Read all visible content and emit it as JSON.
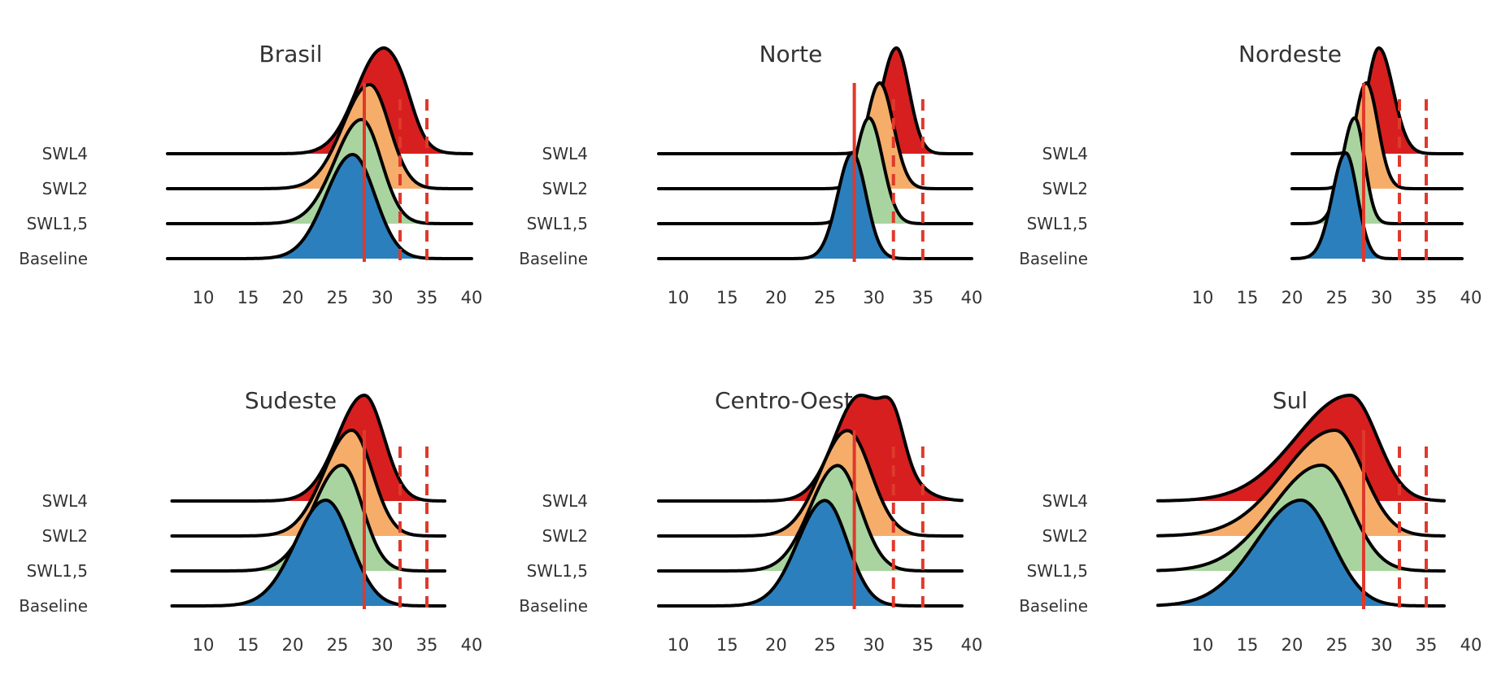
{
  "chart_data": [
    {
      "type": "ridgeline",
      "title": "Brasil",
      "series_labels": [
        "SWL4",
        "SWL2",
        "SWL1,5",
        "Baseline"
      ],
      "x_ticks": [
        10,
        15,
        20,
        25,
        30,
        35,
        40
      ],
      "xlim": [
        5,
        40
      ],
      "density_range": [
        6,
        40
      ],
      "reference_lines": {
        "solid": 28,
        "dashed": [
          32,
          35
        ]
      },
      "series": [
        {
          "name": "Baseline",
          "peaks": [
            {
              "mu": 26.7,
              "sl": 3.0,
              "sr": 2.5,
              "w": 1.0
            }
          ]
        },
        {
          "name": "SWL1,5",
          "peaks": [
            {
              "mu": 27.7,
              "sl": 3.0,
              "sr": 2.2,
              "w": 1.0
            }
          ]
        },
        {
          "name": "SWL2",
          "peaks": [
            {
              "mu": 28.6,
              "sl": 3.0,
              "sr": 2.2,
              "w": 1.0
            }
          ]
        },
        {
          "name": "SWL4",
          "peaks": [
            {
              "mu": 30.0,
              "sl": 2.9,
              "sr": 2.4,
              "w": 1.0
            },
            {
              "mu": 32.5,
              "sl": 1.2,
              "sr": 1.2,
              "w": 0.12
            }
          ]
        }
      ]
    },
    {
      "type": "ridgeline",
      "title": "Norte",
      "series_labels": [
        "SWL4",
        "SWL2",
        "SWL1,5",
        "Baseline"
      ],
      "x_ticks": [
        10,
        15,
        20,
        25,
        30,
        35,
        40
      ],
      "xlim": [
        8,
        40
      ],
      "density_range": [
        8,
        40
      ],
      "reference_lines": {
        "solid": 28,
        "dashed": [
          32,
          35
        ]
      },
      "series": [
        {
          "name": "Baseline",
          "peaks": [
            {
              "mu": 27.8,
              "sl": 1.5,
              "sr": 1.4,
              "w": 1.0
            }
          ]
        },
        {
          "name": "SWL1,5",
          "peaks": [
            {
              "mu": 29.5,
              "sl": 1.4,
              "sr": 1.4,
              "w": 1.0
            }
          ]
        },
        {
          "name": "SWL2",
          "peaks": [
            {
              "mu": 30.6,
              "sl": 1.4,
              "sr": 1.4,
              "w": 1.0
            }
          ]
        },
        {
          "name": "SWL4",
          "peaks": [
            {
              "mu": 32.3,
              "sl": 1.5,
              "sr": 1.3,
              "w": 1.0
            }
          ]
        }
      ]
    },
    {
      "type": "ridgeline",
      "title": "Nordeste",
      "series_labels": [
        "SWL4",
        "SWL2",
        "SWL1,5",
        "Baseline"
      ],
      "x_ticks": [
        10,
        15,
        20,
        25,
        30,
        35,
        40
      ],
      "xlim": [
        5,
        40
      ],
      "density_range": [
        20,
        39
      ],
      "reference_lines": {
        "solid": 28,
        "dashed": [
          32,
          35
        ]
      },
      "series": [
        {
          "name": "Baseline",
          "peaks": [
            {
              "mu": 26.0,
              "sl": 1.5,
              "sr": 1.3,
              "w": 1.0
            }
          ]
        },
        {
          "name": "SWL1,5",
          "peaks": [
            {
              "mu": 27.0,
              "sl": 1.4,
              "sr": 1.1,
              "w": 1.0
            }
          ]
        },
        {
          "name": "SWL2",
          "peaks": [
            {
              "mu": 28.3,
              "sl": 1.3,
              "sr": 1.3,
              "w": 1.0
            }
          ]
        },
        {
          "name": "SWL4",
          "peaks": [
            {
              "mu": 29.7,
              "sl": 1.3,
              "sr": 1.6,
              "w": 1.0
            }
          ]
        }
      ]
    },
    {
      "type": "ridgeline",
      "title": "Sudeste",
      "series_labels": [
        "SWL4",
        "SWL2",
        "SWL1,5",
        "Baseline"
      ],
      "x_ticks": [
        10,
        15,
        20,
        25,
        30,
        35,
        40
      ],
      "xlim": [
        5,
        40
      ],
      "density_range": [
        6.5,
        37
      ],
      "reference_lines": {
        "solid": 28,
        "dashed": [
          32,
          35
        ]
      },
      "series": [
        {
          "name": "Baseline",
          "peaks": [
            {
              "mu": 23.7,
              "sl": 3.4,
              "sr": 2.8,
              "w": 1.0
            }
          ]
        },
        {
          "name": "SWL1,5",
          "peaks": [
            {
              "mu": 25.5,
              "sl": 3.2,
              "sr": 2.3,
              "w": 1.0
            }
          ]
        },
        {
          "name": "SWL2",
          "peaks": [
            {
              "mu": 26.6,
              "sl": 3.1,
              "sr": 2.3,
              "w": 1.0
            }
          ]
        },
        {
          "name": "SWL4",
          "peaks": [
            {
              "mu": 28.0,
              "sl": 3.0,
              "sr": 2.2,
              "w": 1.0
            }
          ]
        }
      ]
    },
    {
      "type": "ridgeline",
      "title": "Centro-Oeste",
      "series_labels": [
        "SWL4",
        "SWL2",
        "SWL1,5",
        "Baseline"
      ],
      "x_ticks": [
        10,
        15,
        20,
        25,
        30,
        35,
        40
      ],
      "xlim": [
        8,
        40
      ],
      "density_range": [
        8,
        39
      ],
      "reference_lines": {
        "solid": 28,
        "dashed": [
          32,
          35
        ]
      },
      "series": [
        {
          "name": "Baseline",
          "peaks": [
            {
              "mu": 25.0,
              "sl": 2.8,
              "sr": 2.3,
              "w": 1.0
            }
          ]
        },
        {
          "name": "SWL1,5",
          "peaks": [
            {
              "mu": 26.3,
              "sl": 2.8,
              "sr": 2.3,
              "w": 1.0
            }
          ]
        },
        {
          "name": "SWL2",
          "peaks": [
            {
              "mu": 27.3,
              "sl": 2.8,
              "sr": 2.4,
              "w": 1.0
            }
          ]
        },
        {
          "name": "SWL4",
          "peaks": [
            {
              "mu": 28.6,
              "sl": 2.6,
              "sr": 3.2,
              "w": 1.0
            },
            {
              "mu": 32.0,
              "sl": 1.1,
              "sr": 1.1,
              "w": 0.35
            }
          ]
        }
      ]
    },
    {
      "type": "ridgeline",
      "title": "Sul",
      "series_labels": [
        "SWL4",
        "SWL2",
        "SWL1,5",
        "Baseline"
      ],
      "x_ticks": [
        10,
        15,
        20,
        25,
        30,
        35,
        40
      ],
      "xlim": [
        5,
        40
      ],
      "density_range": [
        5,
        37
      ],
      "reference_lines": {
        "solid": 28,
        "dashed": [
          32,
          35
        ]
      },
      "series": [
        {
          "name": "Baseline",
          "peaks": [
            {
              "mu": 21.0,
              "sl": 5.0,
              "sr": 3.5,
              "w": 1.0
            }
          ]
        },
        {
          "name": "SWL1,5",
          "peaks": [
            {
              "mu": 23.3,
              "sl": 5.5,
              "sr": 3.3,
              "w": 1.0
            }
          ]
        },
        {
          "name": "SWL2",
          "peaks": [
            {
              "mu": 24.8,
              "sl": 5.7,
              "sr": 3.2,
              "w": 1.0
            }
          ]
        },
        {
          "name": "SWL4",
          "peaks": [
            {
              "mu": 26.5,
              "sl": 6.0,
              "sr": 3.0,
              "w": 1.0
            }
          ]
        }
      ]
    }
  ],
  "colors": {
    "Baseline": "#2b7fbd",
    "SWL1,5": "#a9d4a0",
    "SWL2": "#f6ad6a",
    "SWL4": "#d71f1f",
    "outline": "#000000",
    "reference_line": "#e0392b",
    "text": "#333333"
  }
}
